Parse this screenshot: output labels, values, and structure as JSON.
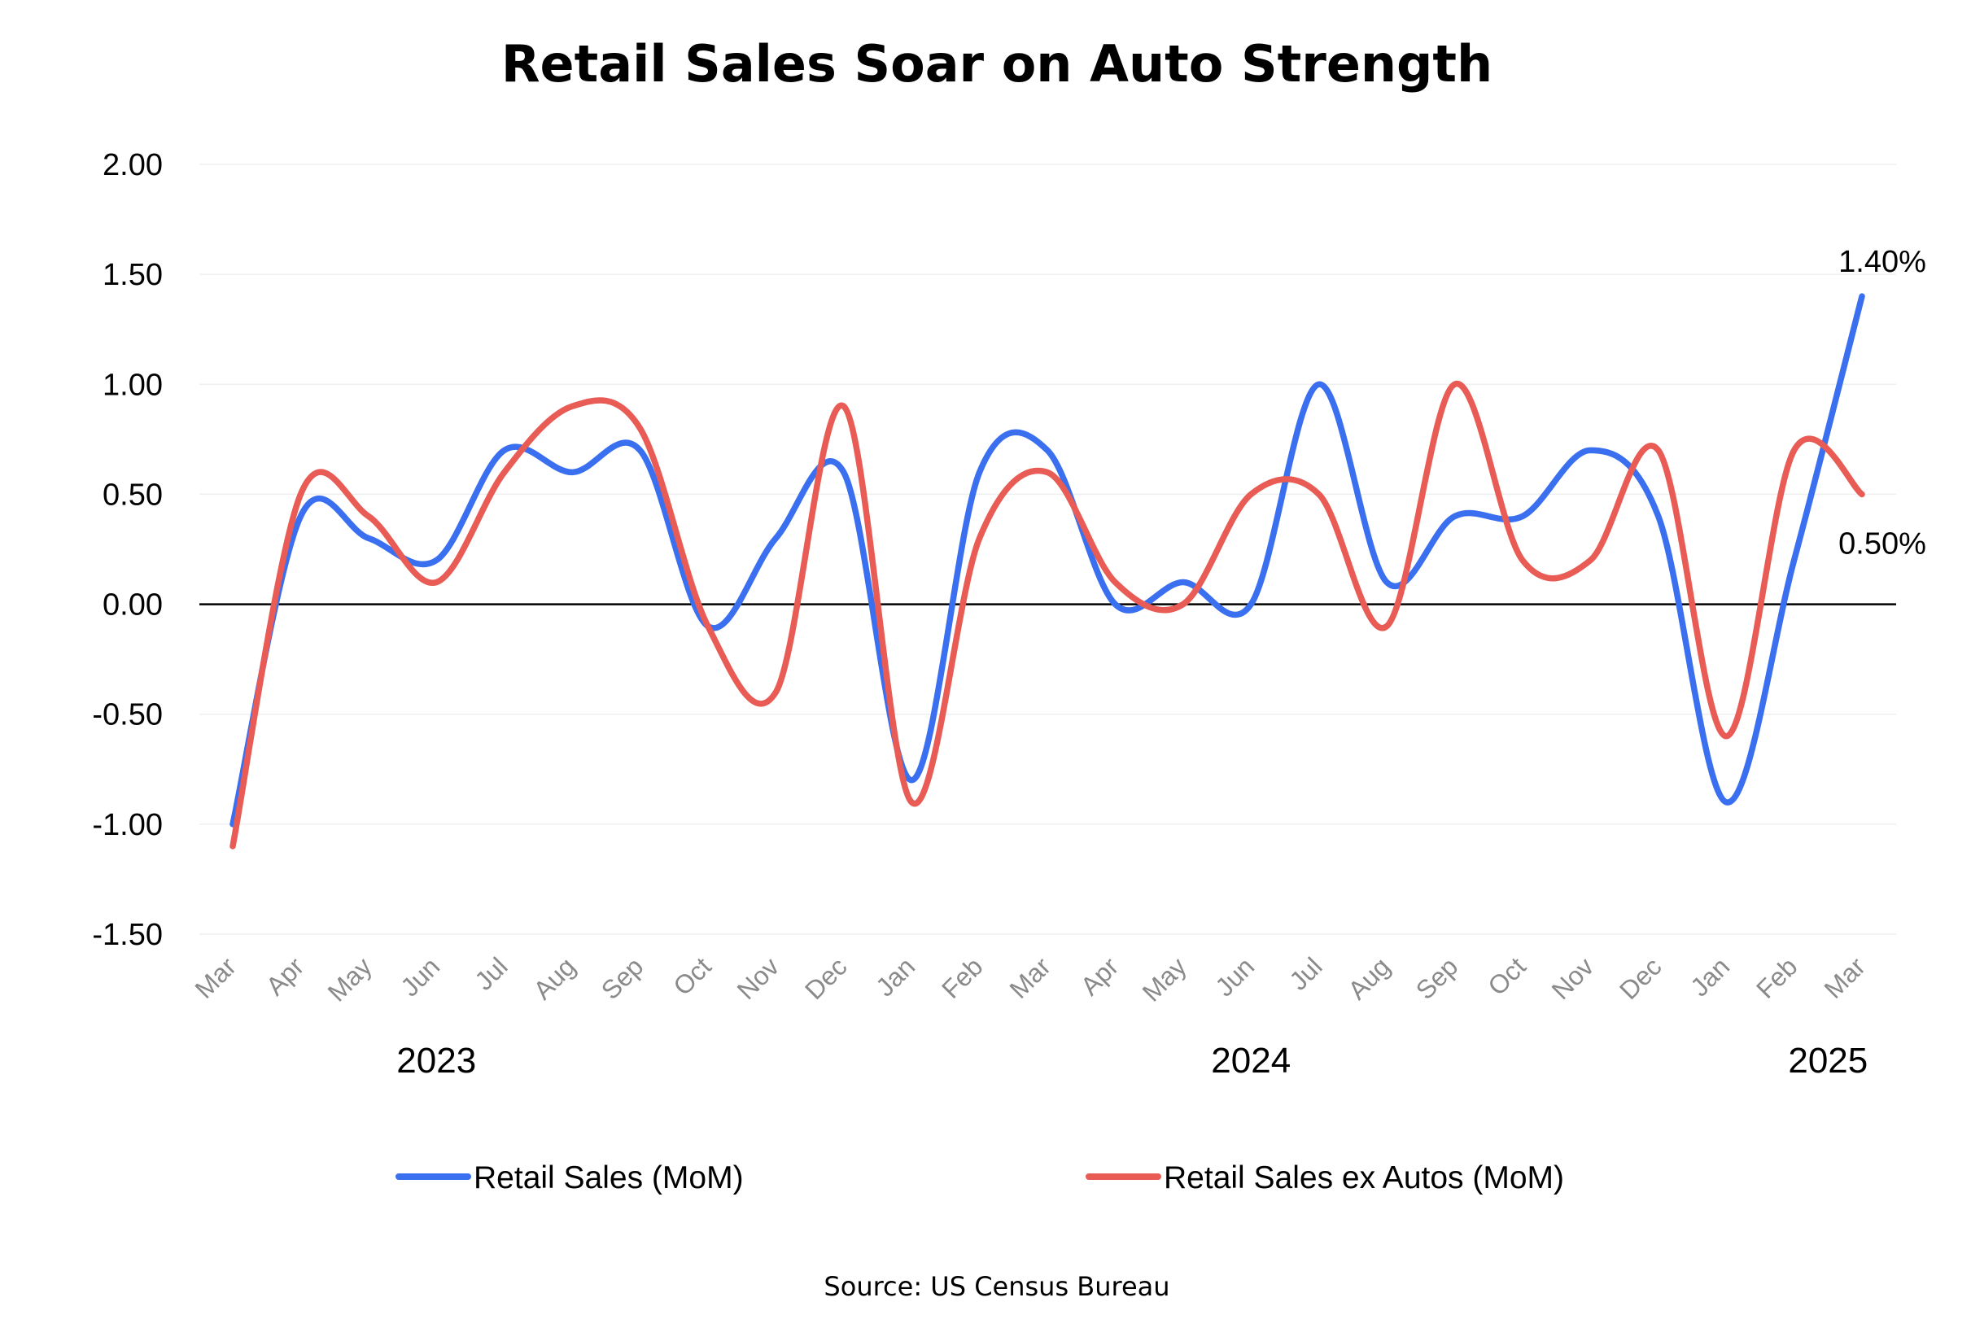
{
  "chart_data": {
    "type": "line",
    "title": "Retail Sales Soar on Auto Strength",
    "source": "Source: US Census Bureau",
    "categories": [
      "Mar",
      "Apr",
      "May",
      "Jun",
      "Jul",
      "Aug",
      "Sep",
      "Oct",
      "Nov",
      "Dec",
      "Jan",
      "Feb",
      "Mar",
      "Apr",
      "May",
      "Jun",
      "Jul",
      "Aug",
      "Sep",
      "Oct",
      "Nov",
      "Dec",
      "Jan",
      "Feb",
      "Mar"
    ],
    "years": [
      {
        "label": "2023",
        "center_index": 3
      },
      {
        "label": "2024",
        "center_index": 15
      },
      {
        "label": "2025",
        "center_index": 23.5
      }
    ],
    "ylim": [
      -1.5,
      2.0
    ],
    "yticks": [
      2.0,
      1.5,
      1.0,
      0.5,
      0.0,
      -0.5,
      -1.0,
      -1.5
    ],
    "ytick_labels": [
      "2.00",
      "1.50",
      "1.00",
      "0.50",
      "0.00",
      "-0.50",
      "-1.00",
      "-1.50"
    ],
    "grid": true,
    "legend_position": "bottom",
    "series": [
      {
        "name": "Retail Sales (MoM)",
        "color": "#3a6ff0",
        "values": [
          -1.0,
          0.4,
          0.3,
          0.2,
          0.7,
          0.6,
          0.7,
          -0.1,
          0.3,
          0.6,
          -0.8,
          0.6,
          0.7,
          0.0,
          0.1,
          0.0,
          1.0,
          0.1,
          0.4,
          0.4,
          0.7,
          0.4,
          -0.9,
          0.2,
          1.4
        ],
        "end_label": "1.40%"
      },
      {
        "name": "Retail Sales ex Autos (MoM)",
        "color": "#e85c55",
        "values": [
          -1.1,
          0.5,
          0.4,
          0.1,
          0.6,
          0.9,
          0.8,
          -0.1,
          -0.4,
          0.9,
          -0.9,
          0.3,
          0.6,
          0.1,
          0.0,
          0.5,
          0.5,
          -0.1,
          1.0,
          0.2,
          0.2,
          0.7,
          -0.6,
          0.7,
          0.5
        ],
        "end_label": "0.50%"
      }
    ]
  }
}
